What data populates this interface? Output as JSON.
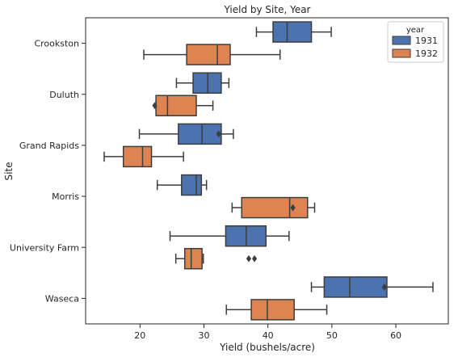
{
  "chart_data": {
    "type": "boxplot",
    "orientation": "horizontal",
    "title": "Yield by Site, Year",
    "xlabel": "Yield (bushels/acre)",
    "ylabel": "Site",
    "xlim": [
      11.5,
      68.2
    ],
    "xticks": [
      20,
      30,
      40,
      50,
      60
    ],
    "grid": false,
    "legend": {
      "title": "year",
      "placement": "top-right"
    },
    "categories": [
      "Crookston",
      "Duluth",
      "Grand Rapids",
      "Morris",
      "University Farm",
      "Waseca"
    ],
    "series": [
      {
        "name": "1931",
        "color": "#4c72b0",
        "boxes": [
          {
            "whislo": 38.2,
            "q1": 40.8,
            "med": 43.0,
            "q3": 46.8,
            "whishi": 49.9,
            "fliers": []
          },
          {
            "whislo": 25.7,
            "q1": 28.3,
            "med": 30.6,
            "q3": 32.7,
            "whishi": 33.9,
            "fliers": []
          },
          {
            "whislo": 19.9,
            "q1": 26.0,
            "med": 29.7,
            "q3": 32.7,
            "whishi": 34.6,
            "fliers": [
              32.3
            ]
          },
          {
            "whislo": 22.7,
            "q1": 26.5,
            "med": 28.8,
            "q3": 29.6,
            "whishi": 30.4,
            "fliers": []
          },
          {
            "whislo": 24.7,
            "q1": 33.4,
            "med": 36.6,
            "q3": 39.7,
            "whishi": 43.3,
            "fliers": []
          },
          {
            "whislo": 46.8,
            "q1": 48.8,
            "med": 52.8,
            "q3": 58.6,
            "whishi": 65.8,
            "fliers": [
              58.2
            ]
          }
        ]
      },
      {
        "name": "1932",
        "color": "#dd8452",
        "boxes": [
          {
            "whislo": 20.6,
            "q1": 27.3,
            "med": 32.1,
            "q3": 34.1,
            "whishi": 41.9,
            "fliers": []
          },
          {
            "whislo": 22.5,
            "q1": 22.5,
            "med": 24.3,
            "q3": 28.8,
            "whishi": 31.4,
            "fliers": [
              22.3
            ]
          },
          {
            "whislo": 14.4,
            "q1": 17.4,
            "med": 20.4,
            "q3": 21.8,
            "whishi": 26.8,
            "fliers": []
          },
          {
            "whislo": 34.4,
            "q1": 35.9,
            "med": 43.4,
            "q3": 46.2,
            "whishi": 47.3,
            "fliers": [
              43.9
            ]
          },
          {
            "whislo": 25.6,
            "q1": 27.0,
            "med": 28.0,
            "q3": 29.7,
            "whishi": 29.9,
            "fliers": [
              37.0,
              37.9
            ]
          },
          {
            "whislo": 33.5,
            "q1": 37.4,
            "med": 39.9,
            "q3": 44.1,
            "whishi": 49.2,
            "fliers": []
          }
        ]
      }
    ]
  }
}
